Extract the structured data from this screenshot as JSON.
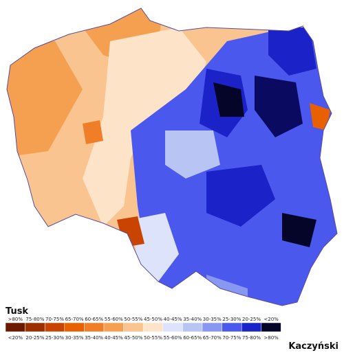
{
  "legend": {
    "top_title": "Tusk",
    "bottom_title": "Kaczyński",
    "items": [
      {
        "top_label": ">80%",
        "bottom_label": "<20%",
        "color": "#6b1a00"
      },
      {
        "top_label": "75-80%",
        "bottom_label": "20-25%",
        "color": "#9c3000"
      },
      {
        "top_label": "70-75%",
        "bottom_label": "25-30%",
        "color": "#c84400"
      },
      {
        "top_label": "65-70%",
        "bottom_label": "30-35%",
        "color": "#e86000"
      },
      {
        "top_label": "60-65%",
        "bottom_label": "35-40%",
        "color": "#f07e28"
      },
      {
        "top_label": "55-60%",
        "bottom_label": "40-45%",
        "color": "#f5a050"
      },
      {
        "top_label": "50-55%",
        "bottom_label": "45-50%",
        "color": "#f9c490"
      },
      {
        "top_label": "45-50%",
        "bottom_label": "50-55%",
        "color": "#fde3c8"
      },
      {
        "top_label": "40-45%",
        "bottom_label": "55-60%",
        "color": "#dde3fa"
      },
      {
        "top_label": "35-40%",
        "bottom_label": "60-65%",
        "color": "#b8c4f4"
      },
      {
        "top_label": "30-35%",
        "bottom_label": "65-70%",
        "color": "#8898f2"
      },
      {
        "top_label": "25-30%",
        "bottom_label": "70-75%",
        "color": "#4a58ee"
      },
      {
        "top_label": "20-25%",
        "bottom_label": "75-80%",
        "color": "#1a22c8"
      },
      {
        "top_label": "<20%",
        "bottom_label": ">80%",
        "color": "#05052a"
      }
    ]
  }
}
